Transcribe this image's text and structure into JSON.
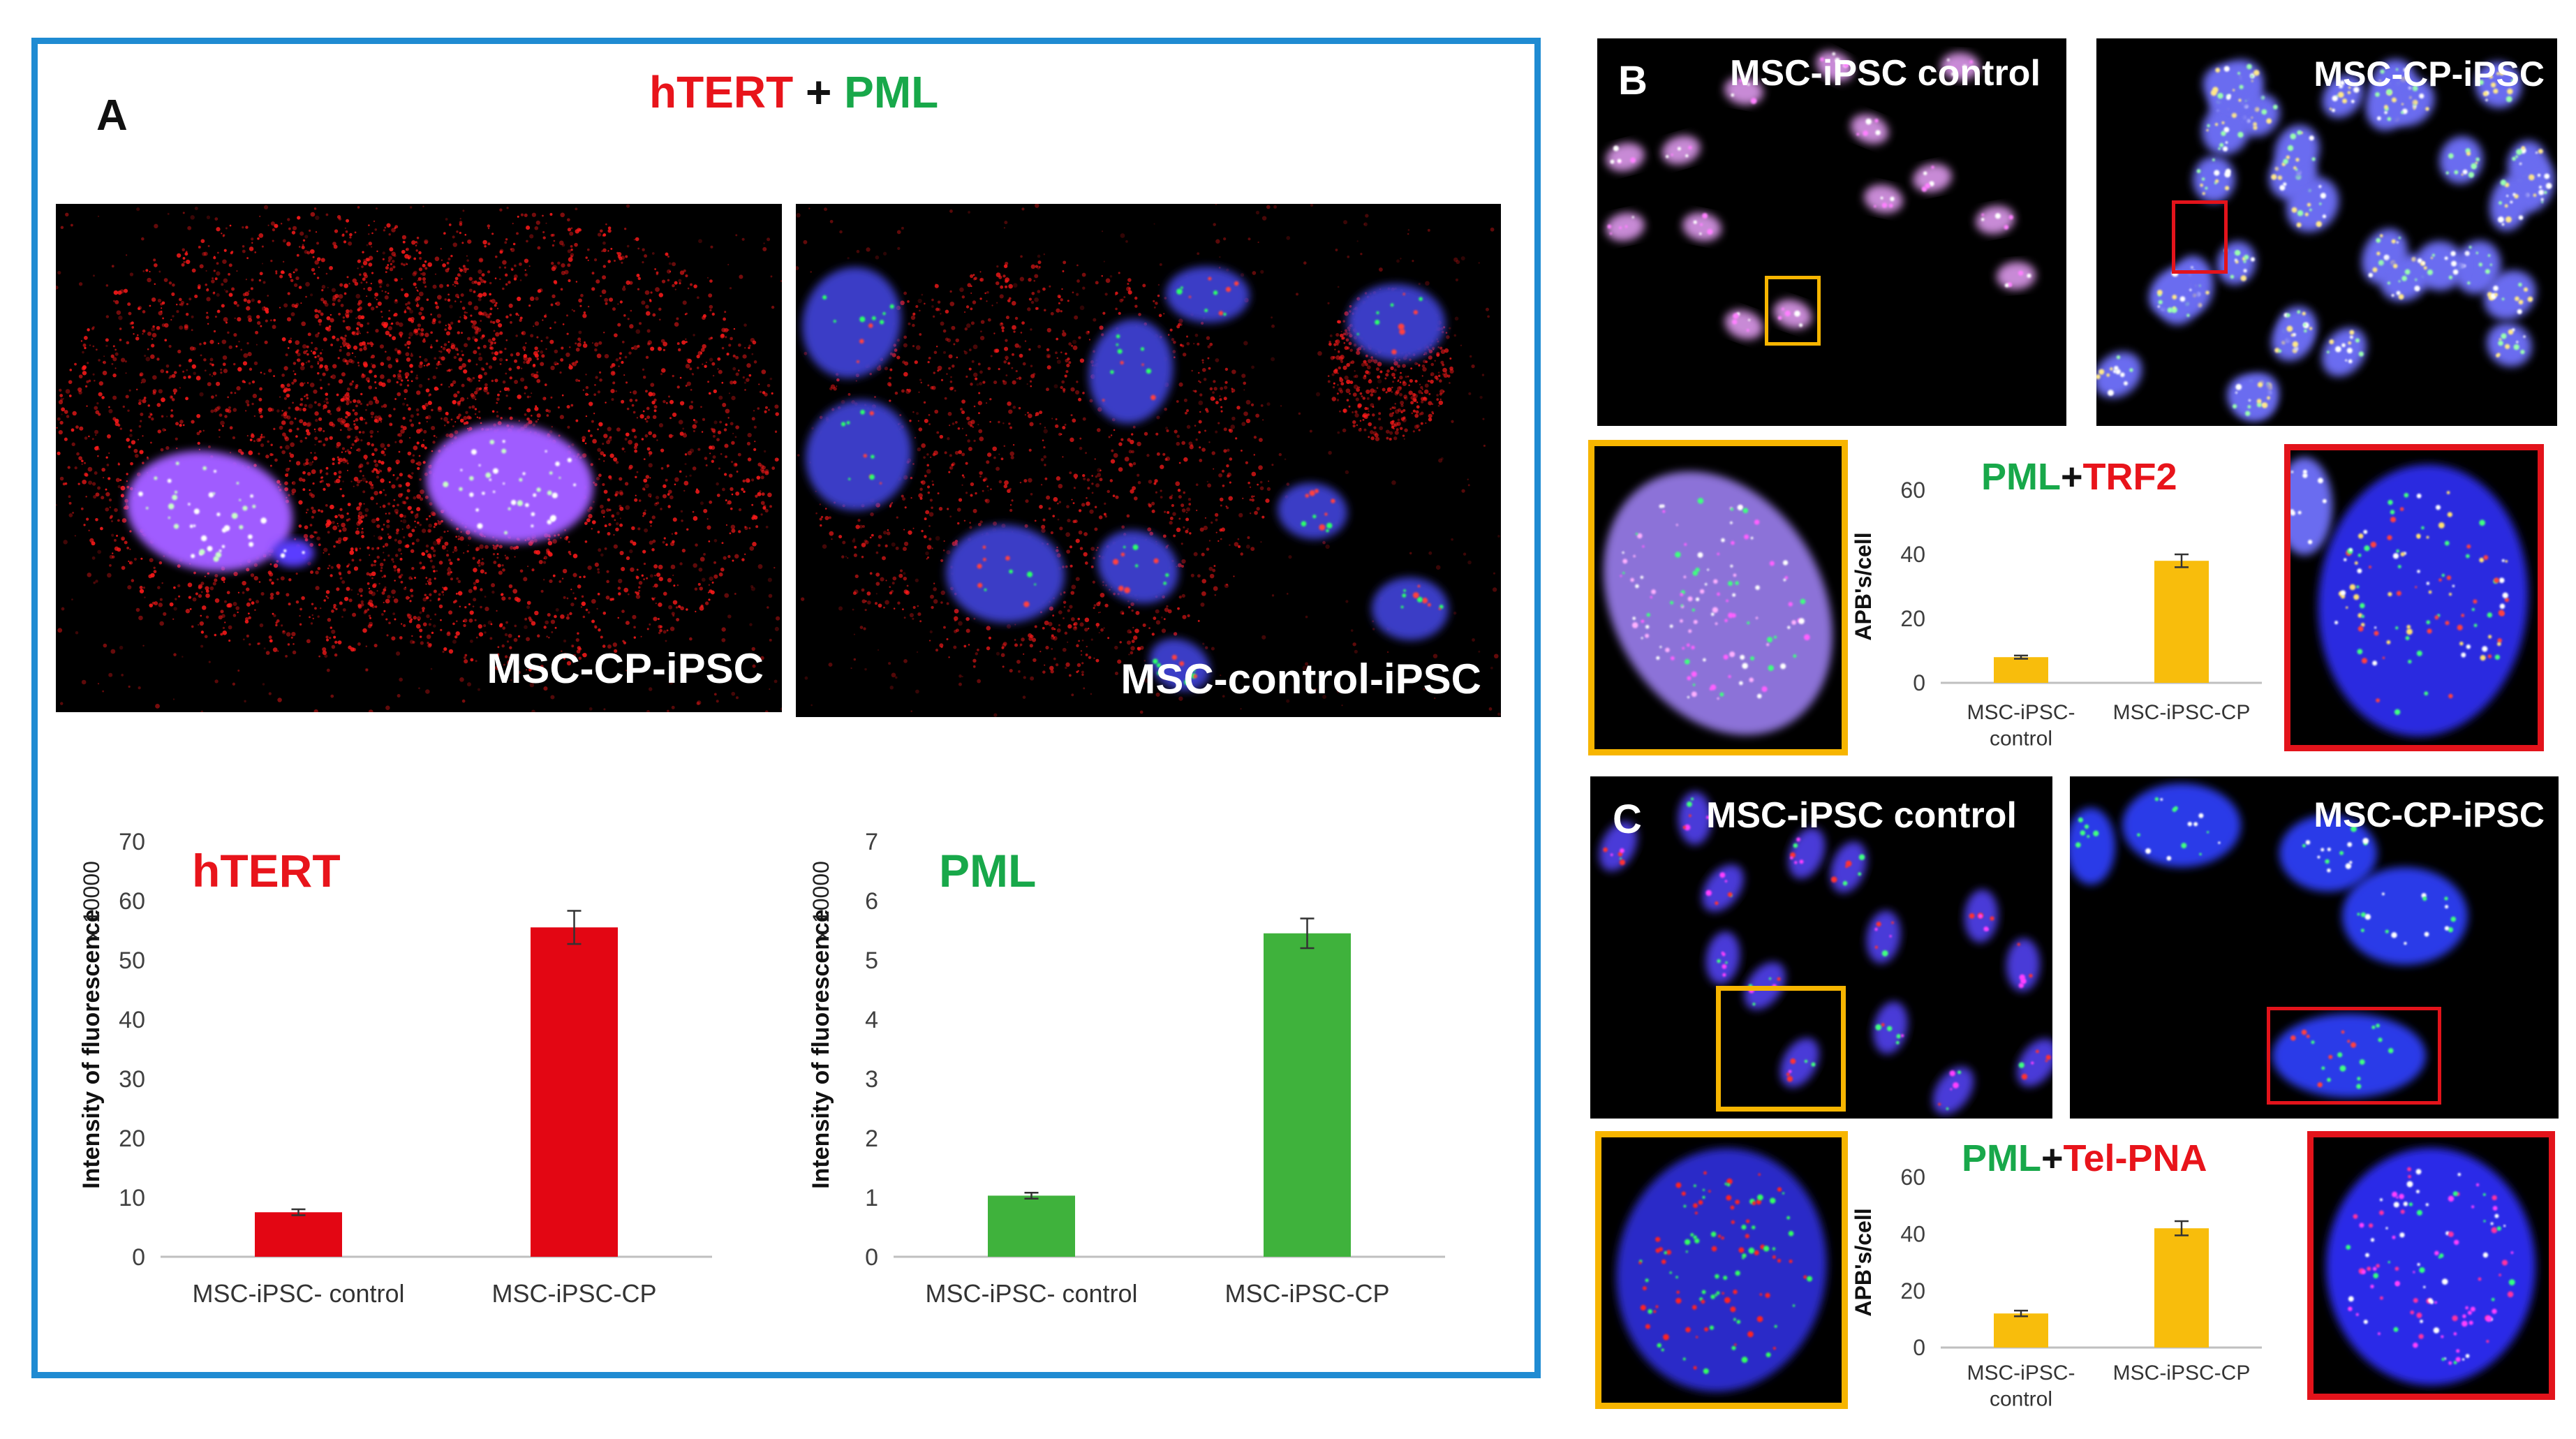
{
  "colors": {
    "frame_blue": "#1f8bd2",
    "hTERT_red": "#e8141b",
    "PML_green": "#18a84a",
    "bar_red": "#e30613",
    "bar_green": "#3fb23c",
    "bar_orange": "#f8bd0c",
    "box_orange": "#f7b500",
    "box_red": "#e3131b"
  },
  "panelA": {
    "letter": "A",
    "title_part1": "hTERT",
    "title_plus": " + ",
    "title_part2": "PML",
    "img_left_label": "MSC-CP-iPSC",
    "img_right_label": "MSC-control-iPSC"
  },
  "panelB": {
    "letter": "B",
    "img_left_label": "MSC-iPSC control",
    "img_right_label": "MSC-CP-iPSC",
    "chart_title_part1": "PML",
    "chart_title_plus": "+",
    "chart_title_part2": "TRF2"
  },
  "panelC": {
    "letter": "C",
    "img_left_label": "MSC-iPSC control",
    "img_right_label": "MSC-CP-iPSC",
    "chart_title_part1": "PML",
    "chart_title_plus": "+",
    "chart_title_part2": "Tel-PNA"
  },
  "chart_data": [
    {
      "type": "bar",
      "id": "hTERT",
      "title": "hTERT",
      "ylabel": "Intensity of fluorescence",
      "yunit": "x 10000",
      "categories": [
        "MSC-iPSC- control",
        "MSC-iPSC-CP"
      ],
      "values": [
        7.5,
        55.5
      ],
      "errors": [
        0.5,
        2.8
      ],
      "yticks": [
        0,
        10,
        20,
        30,
        40,
        50,
        60,
        70
      ],
      "ylim": [
        0,
        70
      ],
      "color": "#e30613"
    },
    {
      "type": "bar",
      "id": "PML",
      "title": "PML",
      "ylabel": "Intensity of fluorescence",
      "yunit": "x 10000",
      "categories": [
        "MSC-iPSC- control",
        "MSC-iPSC-CP"
      ],
      "values": [
        1.03,
        5.45
      ],
      "errors": [
        0.05,
        0.25
      ],
      "yticks": [
        0,
        1,
        2,
        3,
        4,
        5,
        6,
        7
      ],
      "ylim": [
        0,
        7
      ],
      "color": "#3fb23c"
    },
    {
      "type": "bar",
      "id": "B-APB",
      "ylabel": "APB's/cell",
      "categories": [
        "MSC-iPSC-\ncontrol",
        "MSC-iPSC-CP"
      ],
      "values": [
        8,
        38
      ],
      "errors": [
        0.5,
        2.0
      ],
      "yticks": [
        0,
        20,
        40,
        60
      ],
      "ylim": [
        0,
        60
      ],
      "color": "#f8bd0c"
    },
    {
      "type": "bar",
      "id": "C-APB",
      "ylabel": "APB's/cell",
      "categories": [
        "MSC-iPSC-\ncontrol",
        "MSC-iPSC-CP"
      ],
      "values": [
        12,
        42
      ],
      "errors": [
        1.0,
        2.5
      ],
      "yticks": [
        0,
        20,
        40,
        60
      ],
      "ylim": [
        0,
        60
      ],
      "color": "#f8bd0c"
    }
  ]
}
